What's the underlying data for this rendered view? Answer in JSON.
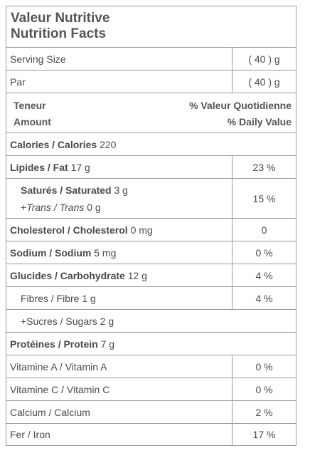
{
  "title": {
    "line1": "Valeur Nutritive",
    "line2": "Nutrition Facts"
  },
  "serving": {
    "label": "Serving Size",
    "value": "( 40 ) g"
  },
  "par": {
    "label": "Par",
    "value": "( 40 ) g"
  },
  "header": {
    "left1": "Teneur",
    "left2": "Amount",
    "right1": "% Valeur Quotidienne",
    "right2": "% Daily Value"
  },
  "calories": {
    "label": "Calories / Calories",
    "amount": "220"
  },
  "fat": {
    "label": "Lipides / Fat",
    "amount": "17 g",
    "dv": "23 %"
  },
  "saturated": {
    "label": "Saturés / Saturated",
    "amount": "3 g",
    "dv": "15 %"
  },
  "trans": {
    "prefix": "+",
    "label": "Trans / Trans",
    "amount": "0 g"
  },
  "cholesterol": {
    "label": "Cholesterol / Cholesterol",
    "amount": "0 mg",
    "dv": "0"
  },
  "sodium": {
    "label": "Sodium / Sodium",
    "amount": "5 mg",
    "dv": "0 %"
  },
  "carbs": {
    "label": "Glucides / Carbohydrate",
    "amount": "12 g",
    "dv": "4 %"
  },
  "fibre": {
    "label": "Fibres / Fibre 1 g",
    "dv": "4 %"
  },
  "sugars": {
    "label": "+Sucres / Sugars 2 g"
  },
  "protein": {
    "label": "Protéines / Protein",
    "amount": "7 g"
  },
  "vitA": {
    "label": "Vitamine A / Vitamin A",
    "dv": "0 %"
  },
  "vitC": {
    "label": "Vitamine C / Vitamin C",
    "dv": "0 %"
  },
  "calcium": {
    "label": "Calcium / Calcium",
    "dv": "2 %"
  },
  "iron": {
    "label": "Fer / Iron",
    "dv": "17 %"
  }
}
